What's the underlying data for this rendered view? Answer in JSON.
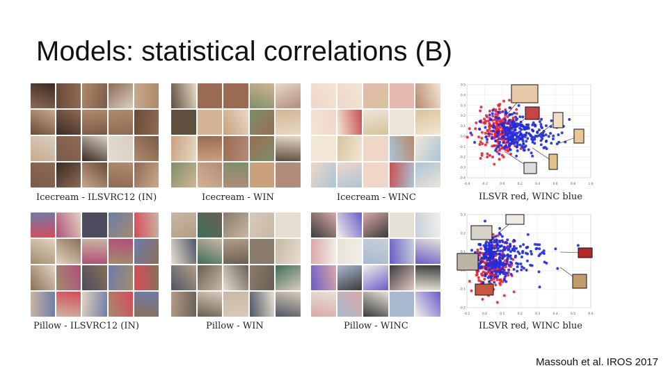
{
  "title": "Models: statistical correlations (B)",
  "citation": "Massouh et al. IROS 2017",
  "panels": [
    {
      "caption": "Icecream - ILSVRC12 (IN)",
      "palette": [
        "#b08a6a",
        "#6b4a35",
        "#d8cfc2",
        "#8f6a55",
        "#3b2a22",
        "#c9a98c",
        "#e4dccf",
        "#7a5a48"
      ]
    },
    {
      "caption": "Icecream - WIN",
      "palette": [
        "#caa07d",
        "#7c8f6a",
        "#e7d9c6",
        "#9a6b52",
        "#4f5b6e",
        "#d4b494",
        "#b38b7a",
        "#5e4f3f"
      ]
    },
    {
      "caption": "Icecream - WINC",
      "palette": [
        "#f3e6d6",
        "#e6b9b0",
        "#d7c39a",
        "#f0d6c7",
        "#b78a6b",
        "#ede3d9",
        "#c94f4f",
        "#a9c5d8"
      ]
    },
    {
      "caption": "Pillow - ILSVRC12 (IN)",
      "palette": [
        "#d84a5a",
        "#8a6f58",
        "#c9b5a1",
        "#6e7ca8",
        "#b04f7a",
        "#e2d4c0",
        "#4c4c5e",
        "#a38c6d"
      ]
    },
    {
      "caption": "Pillow - WIN",
      "palette": [
        "#3f6e5a",
        "#c8b7a4",
        "#8a7a6a",
        "#d9cbb9",
        "#6a5f55",
        "#b39c85",
        "#4e5766",
        "#e6ddd0"
      ]
    },
    {
      "caption": "Pillow - WINC",
      "palette": [
        "#6a5cc9",
        "#f2efe9",
        "#d9a8a6",
        "#c6d0da",
        "#e7e2d8",
        "#a8b9cf",
        "#e3c7c4",
        "#3b3b3b"
      ]
    }
  ],
  "scatter_captions": [
    "ILSVR red, WINC blue",
    "ILSVR red, WINC blue"
  ],
  "chart_data": [
    {
      "type": "scatter",
      "title": "",
      "series": [
        {
          "name": "ILSVR",
          "color": "#e32636"
        },
        {
          "name": "WINC",
          "color": "#1f2be0"
        }
      ],
      "xlim": [
        -0.4,
        1.0
      ],
      "ylim": [
        -0.4,
        0.5
      ],
      "xticks": [
        "-0.4",
        "-0.2",
        "0.0",
        "0.2",
        "0.4",
        "0.6",
        "0.8",
        "1.0"
      ],
      "yticks": [
        "0.5",
        "0.4",
        "0.3",
        "0.2",
        "0.1",
        "0.0",
        "-0.1",
        "-0.2",
        "-0.3",
        "-0.4"
      ],
      "clusters": [
        {
          "series": "ILSVR",
          "cx": -0.05,
          "cy": 0.05,
          "sx": 0.12,
          "sy": 0.12,
          "n": 220
        },
        {
          "series": "WINC",
          "cx": 0.1,
          "cy": 0.05,
          "sx": 0.14,
          "sy": 0.1,
          "n": 180
        },
        {
          "series": "WINC",
          "cx": 0.3,
          "cy": 0.02,
          "sx": 0.18,
          "sy": 0.07,
          "n": 90
        }
      ]
    },
    {
      "type": "scatter",
      "title": "",
      "series": [
        {
          "name": "ILSVR",
          "color": "#e32636"
        },
        {
          "name": "WINC",
          "color": "#1f2be0"
        }
      ],
      "xlim": [
        -0.1,
        0.6
      ],
      "ylim": [
        -0.2,
        0.3
      ],
      "xticks": [
        "-0.1",
        "0.0",
        "0.1",
        "0.2",
        "0.3",
        "0.4",
        "0.5",
        "0.6"
      ],
      "yticks": [
        "0.3",
        "0.2",
        "0.1",
        "0.0",
        "-0.1",
        "-0.2"
      ],
      "clusters": [
        {
          "series": "ILSVR",
          "cx": 0.04,
          "cy": 0.02,
          "sx": 0.05,
          "sy": 0.07,
          "n": 200
        },
        {
          "series": "WINC",
          "cx": 0.05,
          "cy": 0.07,
          "sx": 0.05,
          "sy": 0.06,
          "n": 220
        },
        {
          "series": "WINC",
          "cx": 0.22,
          "cy": 0.08,
          "sx": 0.1,
          "sy": 0.05,
          "n": 80
        }
      ]
    }
  ]
}
